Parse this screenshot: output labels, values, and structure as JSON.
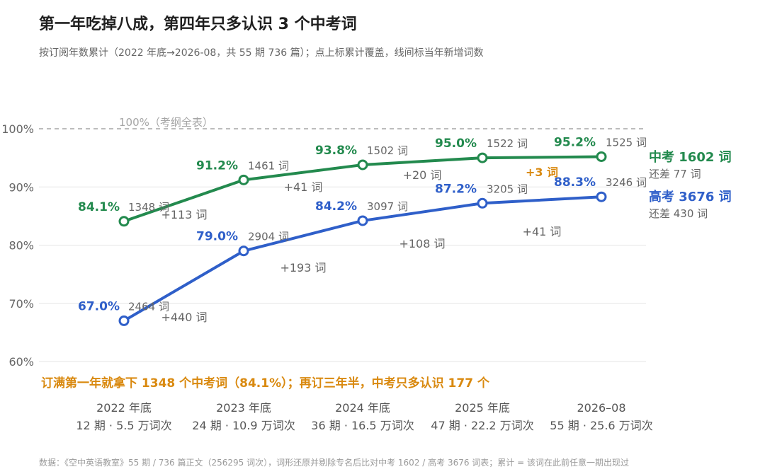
{
  "title": "第一年吃掉八成，第四年只多认识 3 个中考词",
  "subtitle": "按订阅年数累计（2022 年底→2026-08，共 55 期 736 篇）；点上标累计覆盖，线间标当年新增词数",
  "footer": "数据：《空中英语教室》55 期 / 736 篇正文（256295 词次），词形还原并剔除专名后比对中考 1602 / 高考 3676 词表；累计 = 该词在此前任意一期出现过",
  "colors": {
    "zhongkao": "#238a4e",
    "gaokao": "#2f5fc9",
    "highlight": "#d9890f",
    "grid": "#e6e6e6",
    "ref": "#a5a5a5",
    "axis_text": "#666666"
  },
  "chart_data": {
    "type": "line",
    "ylim": [
      60,
      100
    ],
    "yticks": [
      "60%",
      "70%",
      "80%",
      "90%",
      "100%"
    ],
    "categories": [
      "2022 年底",
      "2023 年底",
      "2024 年底",
      "2025 年底",
      "2026–08"
    ],
    "category_sub": [
      "12 期 · 5.5 万词次",
      "24 期 · 10.9 万词次",
      "36 期 · 16.5 万词次",
      "47 期 · 22.2 万词次",
      "55 期 · 25.6 万词次"
    ],
    "reference": {
      "value": 100,
      "label": "100%（考纲全表）"
    },
    "series": [
      {
        "key": "zhongkao",
        "values": [
          84.1,
          91.2,
          93.8,
          95.0,
          95.2
        ],
        "pct_labels": [
          "84.1%",
          "91.2%",
          "93.8%",
          "95.0%",
          "95.2%"
        ],
        "word_labels": [
          "1348 词",
          "1461 词",
          "1502 词",
          "1522 词",
          "1525 词"
        ],
        "increments": [
          "+113 词",
          "+41 词",
          "+20 词",
          "+3 词"
        ],
        "end_label": "中考 1602 词",
        "end_sub": "还差 77 词"
      },
      {
        "key": "gaokao",
        "values": [
          67.0,
          79.0,
          84.2,
          87.2,
          88.3
        ],
        "pct_labels": [
          "67.0%",
          "79.0%",
          "84.2%",
          "87.2%",
          "88.3%"
        ],
        "word_labels": [
          "2464 词",
          "2904 词",
          "3097 词",
          "3205 词",
          "3246 词"
        ],
        "increments": [
          "+440 词",
          "+193 词",
          "+108 词",
          "+41 词"
        ],
        "end_label": "高考 3676 词",
        "end_sub": "还差 430 词"
      }
    ],
    "annotation": "订满第一年就拿下 1348 个中考词（84.1%）；再订三年半，中考只多认识 177 个"
  }
}
